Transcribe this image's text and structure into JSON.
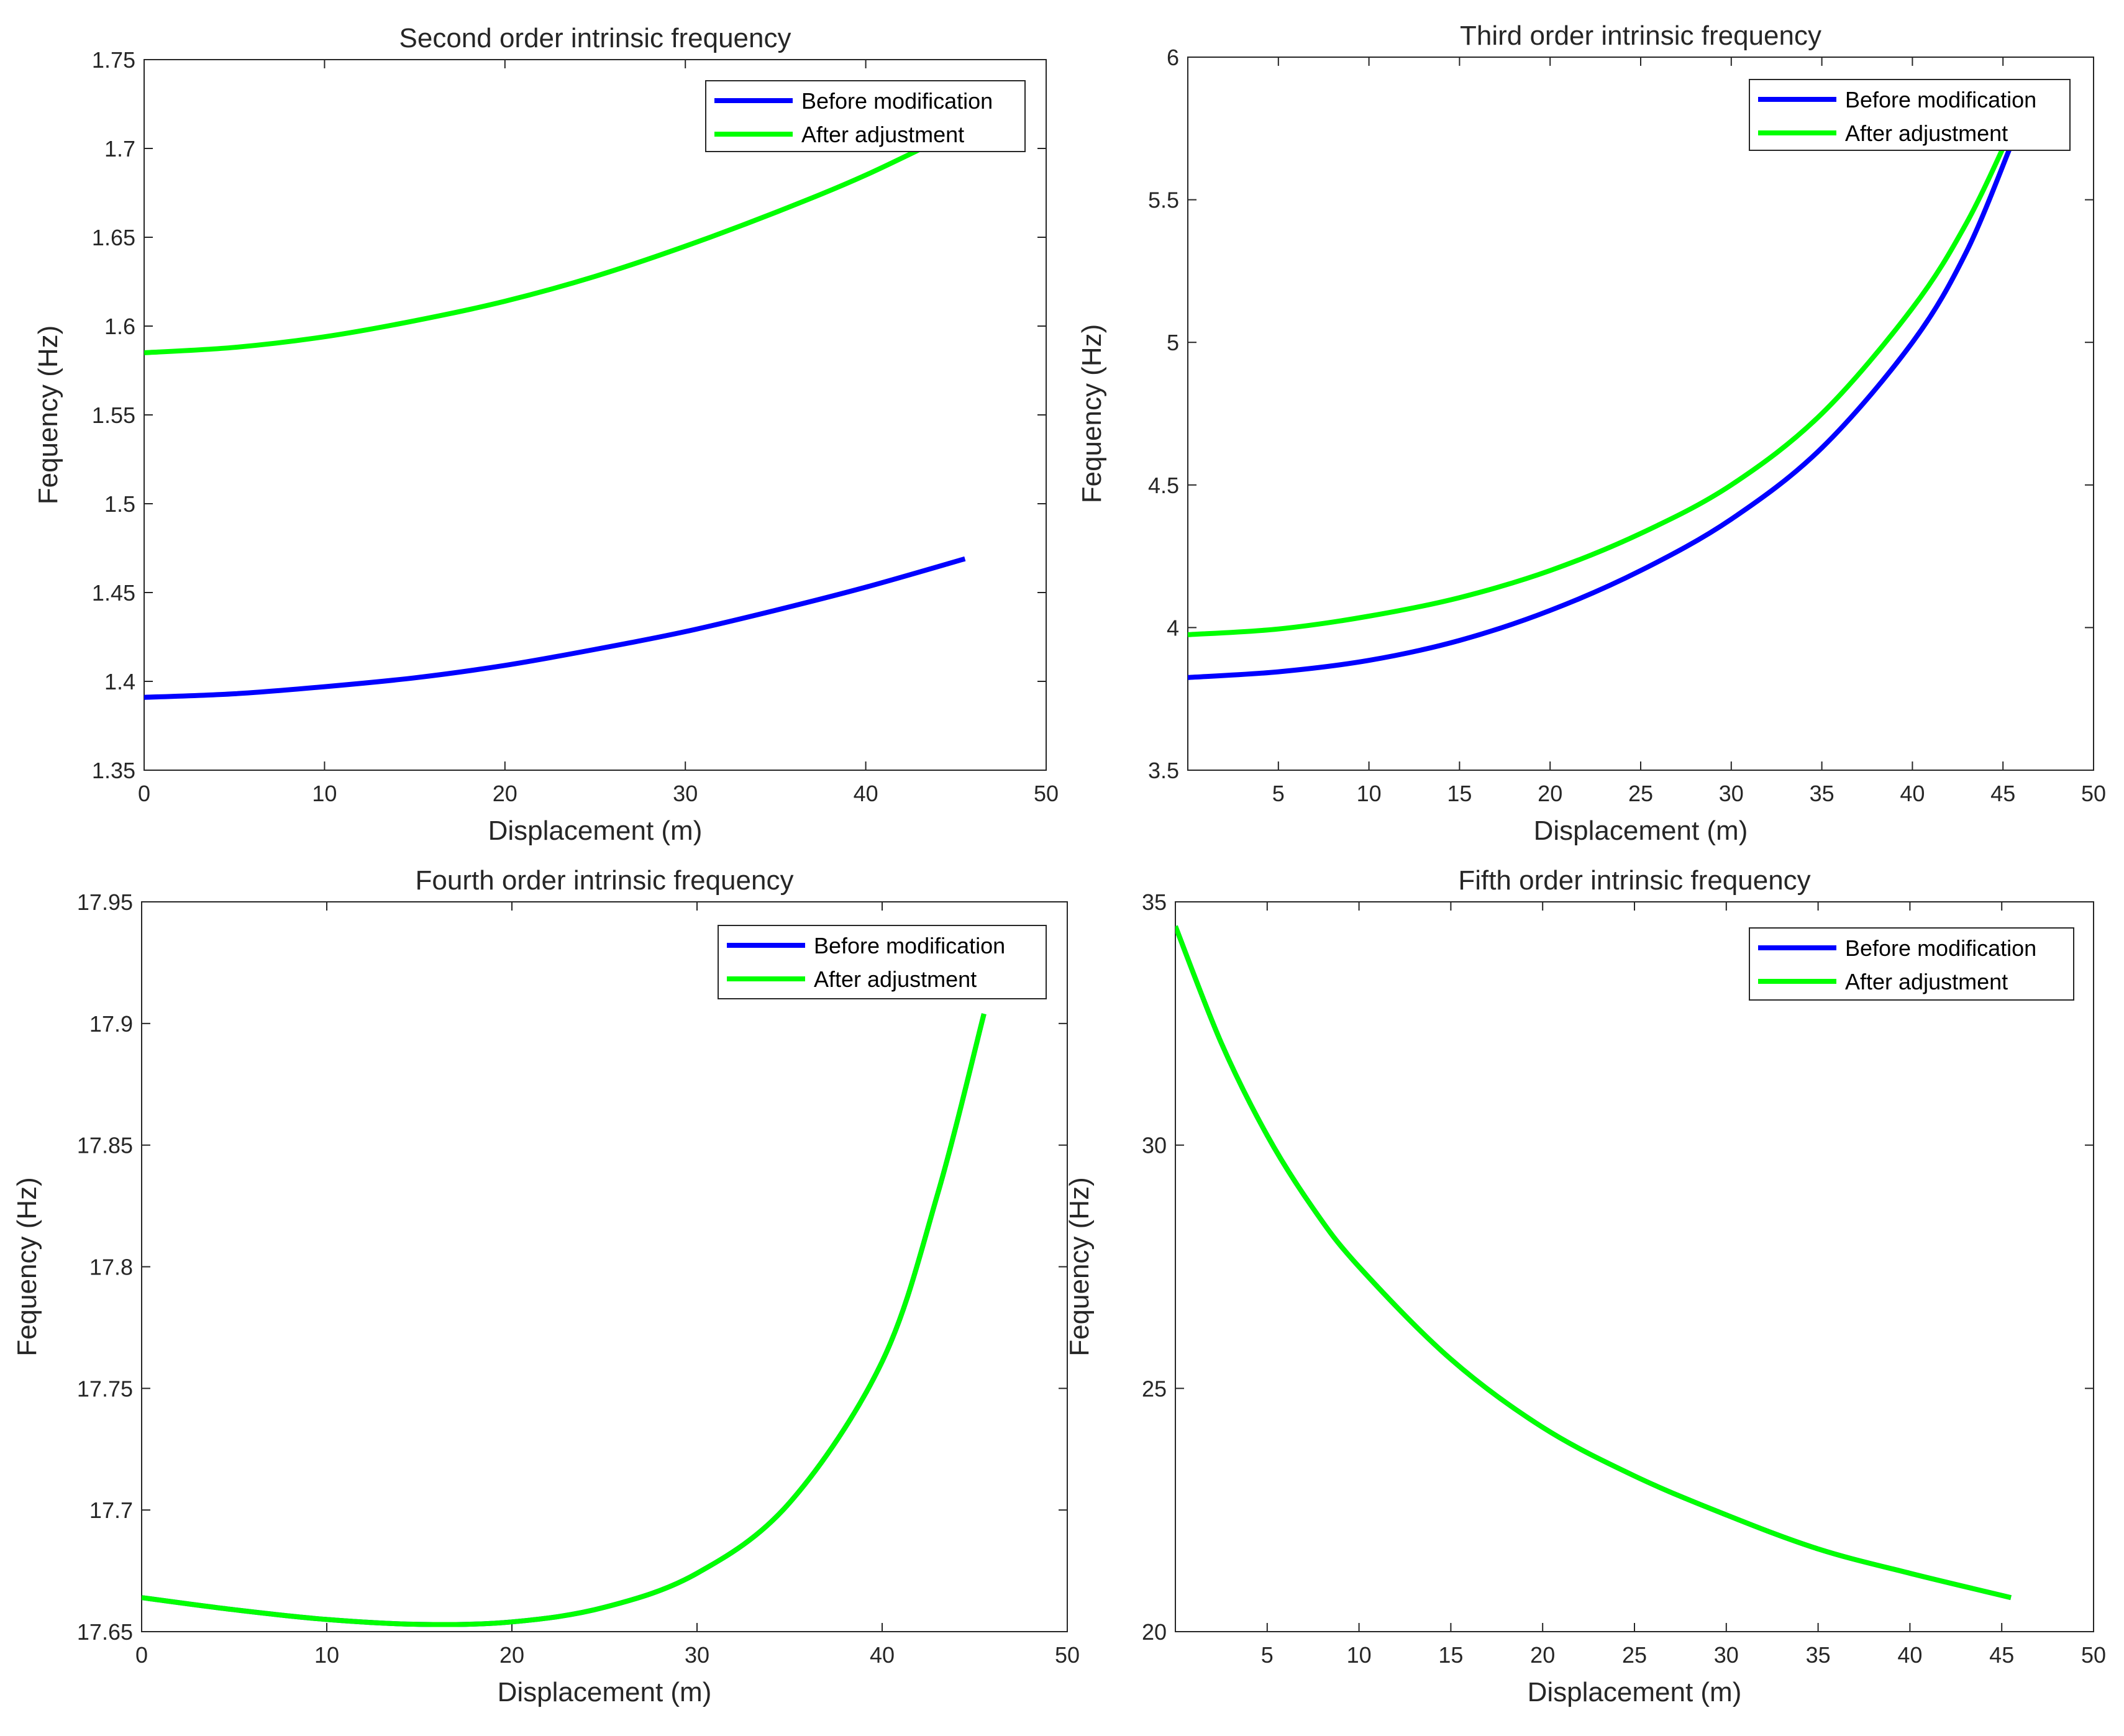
{
  "chart_data": [
    {
      "type": "line",
      "title": "Second order intrinsic frequency",
      "xlabel": "Displacement (m)",
      "ylabel": "Fequency (Hz)",
      "xlim": [
        0,
        50
      ],
      "ylim": [
        1.35,
        1.75
      ],
      "xticks": [
        "0",
        "10",
        "20",
        "30",
        "40",
        "50"
      ],
      "yticks": [
        "1.35",
        "1.4",
        "1.45",
        "1.5",
        "1.55",
        "1.6",
        "1.65",
        "1.7",
        "1.75"
      ],
      "grid": false,
      "legend_position": "top-right",
      "series": [
        {
          "name": "Before modification",
          "color": "#0000ff",
          "x": [
            0,
            5,
            10,
            15,
            20,
            25,
            30,
            35,
            40,
            45.5
          ],
          "y": [
            1.391,
            1.393,
            1.397,
            1.402,
            1.409,
            1.418,
            1.428,
            1.44,
            1.453,
            1.469
          ]
        },
        {
          "name": "After adjustment",
          "color": "#00ff00",
          "x": [
            0,
            5,
            10,
            15,
            20,
            25,
            30,
            35,
            40,
            45.5
          ],
          "y": [
            1.585,
            1.588,
            1.594,
            1.603,
            1.614,
            1.628,
            1.645,
            1.664,
            1.685,
            1.712
          ]
        }
      ]
    },
    {
      "type": "line",
      "title": "Third order intrinsic frequency",
      "xlabel": "Displacement (m)",
      "ylabel": "Fequency (Hz)",
      "xlim": [
        0,
        50
      ],
      "ylim": [
        3.5,
        6
      ],
      "xticks": [
        "5",
        "10",
        "15",
        "20",
        "25",
        "30",
        "35",
        "40",
        "45",
        "50"
      ],
      "yticks": [
        "3.5",
        "4",
        "4.5",
        "5",
        "5.5",
        "6"
      ],
      "grid": false,
      "legend_position": "top-right",
      "series": [
        {
          "name": "Before modification",
          "color": "#0000ff",
          "x": [
            0,
            5,
            10,
            15,
            20,
            25,
            30,
            35,
            40,
            43,
            45.5
          ],
          "y": [
            3.825,
            3.845,
            3.885,
            3.955,
            4.06,
            4.2,
            4.38,
            4.63,
            5.0,
            5.32,
            5.7
          ]
        },
        {
          "name": "After adjustment",
          "color": "#00ff00",
          "x": [
            0,
            5,
            10,
            15,
            20,
            25,
            30,
            35,
            40,
            43,
            45.5
          ],
          "y": [
            3.975,
            3.995,
            4.04,
            4.105,
            4.2,
            4.33,
            4.5,
            4.75,
            5.12,
            5.42,
            5.75
          ]
        }
      ]
    },
    {
      "type": "line",
      "title": "Fourth order intrinsic frequency",
      "xlabel": "Displacement (m)",
      "ylabel": "Fequency (Hz)",
      "xlim": [
        0,
        50
      ],
      "ylim": [
        17.65,
        17.95
      ],
      "xticks": [
        "0",
        "10",
        "20",
        "30",
        "40",
        "50"
      ],
      "yticks": [
        "17.65",
        "17.7",
        "17.75",
        "17.8",
        "17.85",
        "17.9",
        "17.95"
      ],
      "grid": false,
      "legend_position": "top-right",
      "series": [
        {
          "name": "Before modification",
          "color": "#0000ff",
          "x": [
            0,
            5,
            10,
            15,
            20,
            25,
            30,
            35,
            40,
            43,
            45.5
          ],
          "y": [
            17.664,
            17.659,
            17.655,
            17.653,
            17.654,
            17.66,
            17.674,
            17.703,
            17.761,
            17.83,
            17.904
          ]
        },
        {
          "name": "After adjustment",
          "color": "#00ff00",
          "x": [
            0,
            5,
            10,
            15,
            20,
            25,
            30,
            35,
            40,
            43,
            45.5
          ],
          "y": [
            17.664,
            17.659,
            17.655,
            17.653,
            17.654,
            17.66,
            17.674,
            17.703,
            17.761,
            17.83,
            17.904
          ]
        }
      ]
    },
    {
      "type": "line",
      "title": "Fifth order intrinsic frequency",
      "xlabel": "Displacement (m)",
      "ylabel": "Fequency (Hz)",
      "xlim": [
        0,
        50
      ],
      "ylim": [
        20,
        35
      ],
      "xticks": [
        "5",
        "10",
        "15",
        "20",
        "25",
        "30",
        "35",
        "40",
        "45",
        "50"
      ],
      "yticks": [
        "20",
        "25",
        "30",
        "35"
      ],
      "grid": false,
      "legend_position": "top-right",
      "series": [
        {
          "name": "Before modification",
          "color": "#0000ff",
          "x": [
            0,
            2.5,
            5,
            7.5,
            10,
            15,
            20,
            25,
            30,
            35,
            40,
            45.5
          ],
          "y": [
            34.5,
            32.1,
            30.2,
            28.7,
            27.5,
            25.6,
            24.2,
            23.2,
            22.4,
            21.7,
            21.2,
            20.7
          ]
        },
        {
          "name": "After adjustment",
          "color": "#00ff00",
          "x": [
            0,
            2.5,
            5,
            7.5,
            10,
            15,
            20,
            25,
            30,
            35,
            40,
            45.5
          ],
          "y": [
            34.5,
            32.1,
            30.2,
            28.7,
            27.5,
            25.6,
            24.2,
            23.2,
            22.4,
            21.7,
            21.2,
            20.7
          ]
        }
      ]
    }
  ]
}
